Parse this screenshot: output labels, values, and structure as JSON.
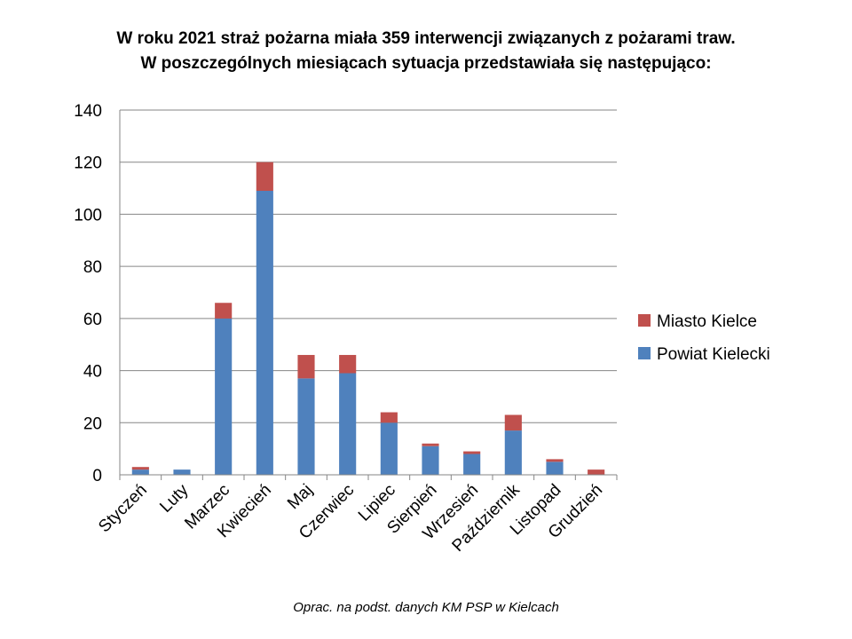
{
  "chart_data": {
    "type": "bar",
    "stacked": true,
    "title": "W roku 2021 straż pożarna miała 359 interwencji związanych z pożarami traw.",
    "subtitle": "W poszczególnych miesiącach sytuacja przedstawiała się następująco:",
    "categories": [
      "Styczeń",
      "Luty",
      "Marzec",
      "Kwiecień",
      "Maj",
      "Czerwiec",
      "Lipiec",
      "Sierpień",
      "Wrzesień",
      "Październik",
      "Listopad",
      "Grudzień"
    ],
    "series": [
      {
        "name": "Powiat Kielecki",
        "color": "#4F81BD",
        "values": [
          2,
          2,
          60,
          109,
          37,
          39,
          20,
          11,
          8,
          17,
          5,
          0
        ]
      },
      {
        "name": "Miasto Kielce",
        "color": "#C0504D",
        "values": [
          1,
          0,
          6,
          11,
          9,
          7,
          4,
          1,
          1,
          6,
          1,
          2
        ]
      }
    ],
    "yticks": [
      "0",
      "20",
      "40",
      "60",
      "80",
      "100",
      "120",
      "140"
    ],
    "ylim": [
      0,
      140
    ],
    "grid": true,
    "legend": "right",
    "xlabel": "",
    "ylabel": "",
    "source": "Oprac. na podst. danych KM PSP w Kielcach"
  }
}
